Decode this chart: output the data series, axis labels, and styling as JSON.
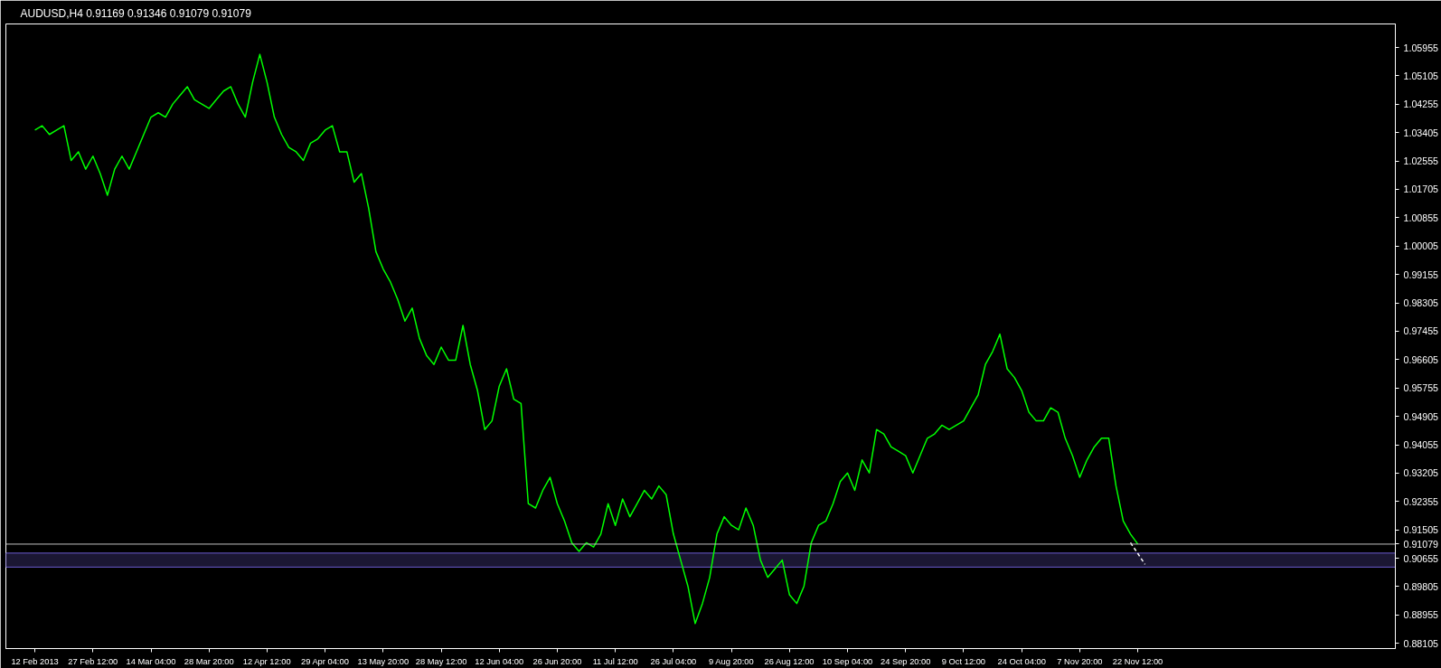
{
  "chart_data": {
    "type": "line",
    "title": "AUDUSD,H4  0.91169 0.91346 0.91079 0.91079",
    "categories": [
      "12 Feb 2013",
      null,
      null,
      null,
      null,
      null,
      null,
      null,
      "27 Feb 12:00",
      null,
      null,
      null,
      null,
      null,
      null,
      null,
      "14 Mar 04:00",
      null,
      null,
      null,
      null,
      null,
      null,
      null,
      "28 Mar 20:00",
      null,
      null,
      null,
      null,
      null,
      null,
      null,
      "12 Apr 12:00",
      null,
      null,
      null,
      null,
      null,
      null,
      null,
      "29 Apr 04:00",
      null,
      null,
      null,
      null,
      null,
      null,
      null,
      "13 May 20:00",
      null,
      null,
      null,
      null,
      null,
      null,
      null,
      "28 May 12:00",
      null,
      null,
      null,
      null,
      null,
      null,
      null,
      "12 Jun 04:00",
      null,
      null,
      null,
      null,
      null,
      null,
      null,
      "26 Jun 20:00",
      null,
      null,
      null,
      null,
      null,
      null,
      null,
      "11 Jul 12:00",
      null,
      null,
      null,
      null,
      null,
      null,
      null,
      "26 Jul 04:00",
      null,
      null,
      null,
      null,
      null,
      null,
      null,
      "9 Aug 20:00",
      null,
      null,
      null,
      null,
      null,
      null,
      null,
      "26 Aug 12:00",
      null,
      null,
      null,
      null,
      null,
      null,
      null,
      "10 Sep 04:00",
      null,
      null,
      null,
      null,
      null,
      null,
      null,
      "24 Sep 20:00",
      null,
      null,
      null,
      null,
      null,
      null,
      null,
      "9 Oct 12:00",
      null,
      null,
      null,
      null,
      null,
      null,
      null,
      "24 Oct 04:00",
      null,
      null,
      null,
      null,
      null,
      null,
      null,
      "7 Nov 20:00",
      null,
      null,
      null,
      null,
      null,
      null,
      null,
      "22 Nov 12:00",
      null,
      null,
      null,
      null,
      null,
      null,
      null,
      null,
      null,
      null,
      null,
      null,
      null,
      null,
      null,
      null,
      null,
      null,
      null,
      null,
      null,
      null,
      null,
      null,
      null,
      null,
      null,
      null,
      null,
      null,
      null,
      null,
      null,
      null,
      null
    ],
    "series": [
      {
        "color": "#00ff00",
        "values": [
          1.0348,
          1.0361,
          1.0335,
          1.0348,
          1.0361,
          1.0257,
          1.0283,
          1.0231,
          1.027,
          1.0218,
          1.0153,
          1.0231,
          1.027,
          1.0231,
          1.0283,
          1.0335,
          1.0387,
          1.04,
          1.0387,
          1.0426,
          1.0452,
          1.0478,
          1.0439,
          1.0426,
          1.0413,
          1.0439,
          1.0465,
          1.0478,
          1.0426,
          1.0387,
          1.0491,
          1.0575,
          1.0491,
          1.0387,
          1.0335,
          1.0296,
          1.0283,
          1.0257,
          1.0309,
          1.0322,
          1.0348,
          1.0361,
          1.0283,
          1.0283,
          1.0192,
          1.0218,
          1.0114,
          0.9984,
          0.9932,
          0.9893,
          0.9841,
          0.9776,
          0.9815,
          0.9724,
          0.9672,
          0.9646,
          0.9698,
          0.9659,
          0.9659,
          0.9763,
          0.9646,
          0.9568,
          0.9451,
          0.9477,
          0.9581,
          0.9633,
          0.9542,
          0.9529,
          0.9229,
          0.9216,
          0.9269,
          0.9308,
          0.9229,
          0.9177,
          0.9112,
          0.9086,
          0.9112,
          0.9099,
          0.9138,
          0.9229,
          0.9164,
          0.9243,
          0.919,
          0.9229,
          0.9269,
          0.9243,
          0.9282,
          0.9256,
          0.9138,
          0.906,
          0.8982,
          0.887,
          0.893,
          0.9008,
          0.9138,
          0.919,
          0.9164,
          0.9151,
          0.9216,
          0.9164,
          0.906,
          0.9008,
          0.9034,
          0.906,
          0.8956,
          0.893,
          0.8982,
          0.9112,
          0.9164,
          0.9177,
          0.9229,
          0.9295,
          0.9321,
          0.9269,
          0.936,
          0.9321,
          0.9451,
          0.9438,
          0.9399,
          0.9386,
          0.9373,
          0.9321,
          0.9373,
          0.9425,
          0.9438,
          0.9464,
          0.9451,
          0.9464,
          0.9477,
          0.9516,
          0.9555,
          0.9646,
          0.9685,
          0.9737,
          0.9633,
          0.9607,
          0.9568,
          0.9503,
          0.9477,
          0.9477,
          0.9516,
          0.9503,
          0.9425,
          0.9373,
          0.9308,
          0.936,
          0.9399,
          0.9425,
          0.9425,
          0.9282,
          0.9177,
          0.9138,
          0.9108,
          null,
          null,
          null,
          null,
          null,
          null,
          null,
          null,
          null,
          null,
          null,
          null,
          null,
          null,
          null,
          null,
          null,
          null,
          null,
          null,
          null,
          null,
          null,
          null,
          null,
          null,
          null,
          null,
          null,
          null,
          null,
          null,
          null,
          null,
          null
        ]
      },
      {
        "color": "#ffffff",
        "line_style": "dashed",
        "values": [
          null,
          null,
          null,
          null,
          null,
          null,
          null,
          null,
          null,
          null,
          null,
          null,
          null,
          null,
          null,
          null,
          null,
          null,
          null,
          null,
          null,
          null,
          null,
          null,
          null,
          null,
          null,
          null,
          null,
          null,
          null,
          null,
          null,
          null,
          null,
          null,
          null,
          null,
          null,
          null,
          null,
          null,
          null,
          null,
          null,
          null,
          null,
          null,
          null,
          null,
          null,
          null,
          null,
          null,
          null,
          null,
          null,
          null,
          null,
          null,
          null,
          null,
          null,
          null,
          null,
          null,
          null,
          null,
          null,
          null,
          null,
          null,
          null,
          null,
          null,
          null,
          null,
          null,
          null,
          null,
          null,
          null,
          null,
          null,
          null,
          null,
          null,
          null,
          null,
          null,
          null,
          null,
          null,
          null,
          null,
          null,
          null,
          null,
          null,
          null,
          null,
          null,
          null,
          null,
          null,
          null,
          null,
          null,
          null,
          null,
          null,
          null,
          null,
          null,
          null,
          null,
          null,
          null,
          null,
          null,
          null,
          null,
          null,
          null,
          null,
          null,
          null,
          null,
          null,
          null,
          null,
          null,
          null,
          null,
          null,
          null,
          null,
          null,
          null,
          null,
          null,
          null,
          null,
          null,
          null,
          null,
          null,
          null,
          null,
          null,
          null,
          0.9112,
          0.908,
          0.9047,
          null,
          null,
          null,
          null,
          null,
          null,
          null,
          null,
          null,
          null,
          null,
          null,
          null,
          null,
          null,
          null,
          null,
          null,
          null,
          null,
          null,
          null,
          null,
          null,
          null,
          null,
          null,
          null,
          null,
          null,
          null,
          null,
          null,
          null
        ]
      }
    ],
    "ylim": [
      0.8795,
      1.0666
    ],
    "yticks": [
      1.05955,
      1.05105,
      1.04255,
      1.03405,
      1.02555,
      1.01705,
      1.00855,
      1.00005,
      0.99155,
      0.98305,
      0.97455,
      0.96605,
      0.95755,
      0.94905,
      0.94055,
      0.93205,
      0.92355,
      0.91505,
      0.90655,
      0.89805,
      0.88955,
      0.88105
    ],
    "ref_lines": [
      {
        "axis": "y",
        "value": 0.91079,
        "label": "0.91079",
        "color": "#c0c0c0"
      }
    ],
    "bands": [
      {
        "axis": "y",
        "from": 0.9039,
        "to": 0.9081,
        "color": "#6a5acd"
      }
    ],
    "grid": false,
    "line_style": "solid",
    "marker": "none"
  }
}
